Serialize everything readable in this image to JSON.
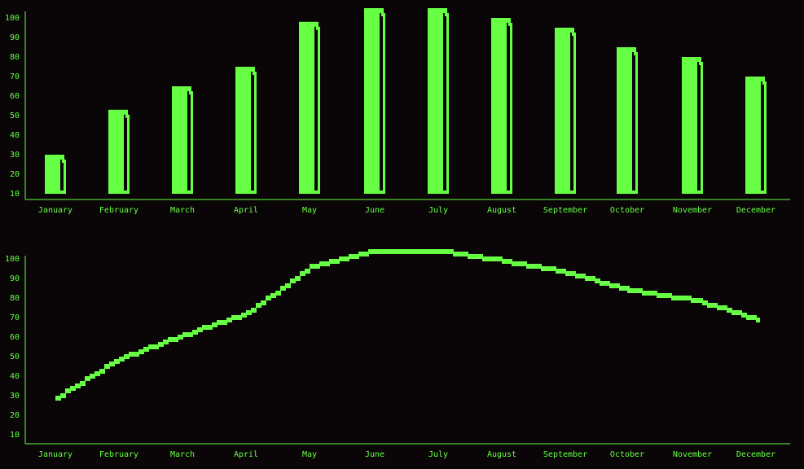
{
  "colors": {
    "background": "#0a0608",
    "accent": "#66ff44",
    "axis": "#66ff44"
  },
  "chart_data": [
    {
      "type": "bar",
      "categories": [
        "January",
        "February",
        "March",
        "April",
        "May",
        "June",
        "July",
        "August",
        "September",
        "October",
        "November",
        "December"
      ],
      "values": [
        30,
        53,
        65,
        75,
        98,
        105,
        105,
        100,
        95,
        85,
        80,
        70
      ],
      "title": "",
      "xlabel": "",
      "ylabel": "",
      "yticks": [
        10,
        20,
        30,
        40,
        50,
        60,
        70,
        80,
        90,
        100
      ],
      "ylim": [
        7,
        106
      ],
      "grid": false,
      "style": "pixel bars with shadow offset"
    },
    {
      "type": "line",
      "categories": [
        "January",
        "February",
        "March",
        "April",
        "May",
        "June",
        "July",
        "August",
        "September",
        "October",
        "November",
        "December"
      ],
      "values": [
        29,
        49,
        61,
        72,
        96,
        104,
        104,
        99,
        93,
        84,
        79,
        69
      ],
      "title": "",
      "xlabel": "",
      "ylabel": "",
      "yticks": [
        10,
        20,
        30,
        40,
        50,
        60,
        70,
        80,
        90,
        100
      ],
      "ylim": [
        7,
        106
      ],
      "grid": false,
      "style": "stepped pixel line"
    }
  ]
}
